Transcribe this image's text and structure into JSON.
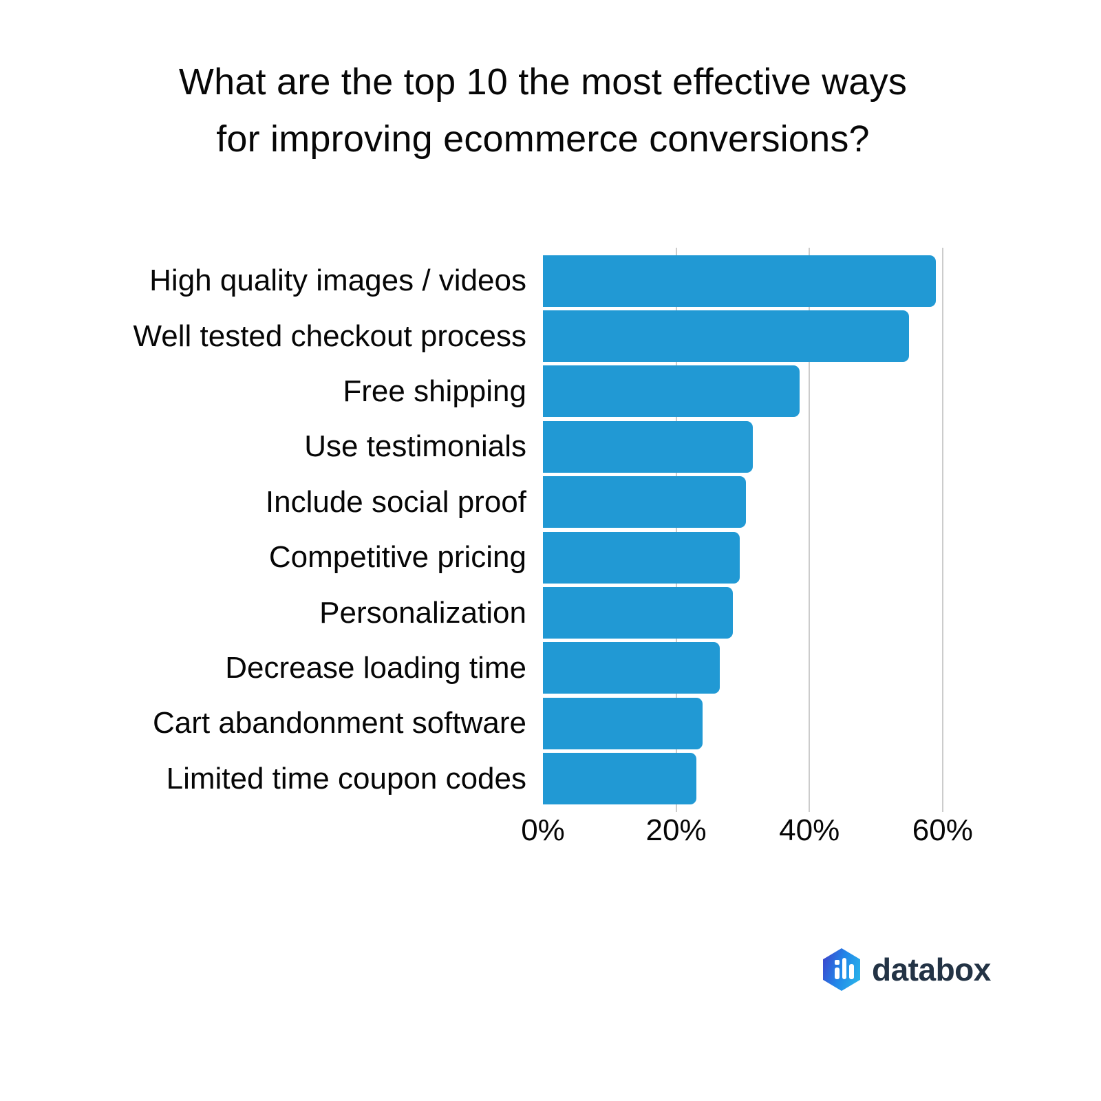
{
  "title": {
    "line1": "What are the top 10 the most effective ways",
    "line2": "for improving ecommerce conversions?"
  },
  "chart_data": {
    "type": "bar",
    "orientation": "horizontal",
    "title": "What are the top 10 the most effective ways for improving ecommerce conversions?",
    "categories": [
      "High quality images / videos",
      "Well tested checkout process",
      "Free shipping",
      "Use testimonials",
      "Include social proof",
      "Competitive pricing",
      "Personalization",
      "Decrease loading time",
      "Cart abandonment software",
      "Limited time coupon codes"
    ],
    "values": [
      59,
      55,
      38.5,
      31.5,
      30.5,
      29.5,
      28.5,
      26.5,
      24,
      23
    ],
    "unit": "%",
    "xlabel": "",
    "ylabel": "",
    "x_ticks": [
      {
        "label": "0%",
        "value": 0
      },
      {
        "label": "20%",
        "value": 20
      },
      {
        "label": "40%",
        "value": 40
      },
      {
        "label": "60%",
        "value": 60
      }
    ],
    "xlim": [
      0,
      67
    ],
    "grid": "vertical-gridlines-at-20-40-60",
    "legend": "none"
  },
  "colors": {
    "bar": "#2199d4",
    "gridline": "#cccccc",
    "title_text": "#070707",
    "label_text": "#060606",
    "logo_text": "#233345"
  },
  "footer": {
    "logo_text": "databox",
    "logo_icon": "databox-hexagon-bars-icon"
  }
}
